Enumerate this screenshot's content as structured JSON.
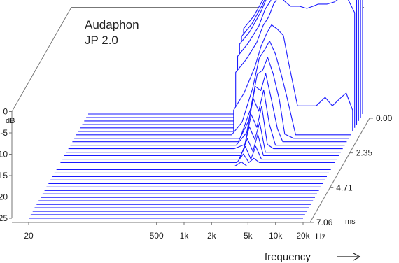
{
  "chart_data": {
    "type": "waterfall",
    "title": "Audaphon",
    "subtitle": "JP 2.0",
    "xlabel": "frequency",
    "x_unit": "Hz",
    "x_scale": "log",
    "xlim": [
      20,
      20000
    ],
    "x_ticks": [
      "20",
      "500",
      "1k",
      "2k",
      "5k",
      "10k",
      "20k"
    ],
    "ylabel": "dB",
    "ylim": [
      -25,
      0
    ],
    "y_ticks": [
      "0",
      "-5",
      "-10",
      "-15",
      "-20",
      "-25"
    ],
    "z_label": "ms",
    "zlim": [
      0,
      7.06
    ],
    "z_ticks": [
      "0.00",
      "2.35",
      "4.71",
      "7.06"
    ],
    "colors": {
      "series": "#1a1aff",
      "axes": "#777777",
      "text": "#1a1a1a"
    },
    "frequency_points": [
      1000,
      1300,
      1700,
      2000,
      2300,
      2600,
      3000,
      3500,
      4000,
      5000,
      6000,
      7000,
      8000,
      10000,
      12000,
      15000,
      17000,
      20000
    ],
    "series": [
      {
        "delay_ms": 0.0,
        "values": [
          -5,
          -2,
          2.5,
          6,
          8,
          11.5,
          14,
          12.5,
          13,
          12.5,
          12.5,
          13,
          13.5,
          13.5,
          14,
          15.5,
          15,
          12
        ]
      },
      {
        "delay_ms": 0.24,
        "values": [
          -6,
          -3,
          1.5,
          5,
          7,
          10.5,
          13,
          11.5,
          12,
          11.5,
          11.5,
          12,
          12.5,
          12.5,
          13,
          14.5,
          14,
          11
        ]
      },
      {
        "delay_ms": 0.47,
        "values": [
          -7,
          -4,
          0.5,
          4,
          6,
          9.5,
          12,
          10.5,
          11,
          10.5,
          10.5,
          11,
          11.5,
          11.5,
          12,
          13.5,
          13,
          10
        ]
      },
      {
        "delay_ms": 0.71,
        "values": [
          -9,
          -6,
          -2,
          2,
          4,
          7.5,
          10,
          8.5,
          9,
          8.5,
          8.5,
          9,
          9.5,
          9.5,
          10,
          11.5,
          11,
          8
        ]
      },
      {
        "delay_ms": 0.94,
        "values": [
          -12,
          -9,
          -5,
          -1,
          1,
          4,
          6,
          4.5,
          3.5,
          3.5,
          3,
          3.5,
          4,
          4,
          4.5,
          6,
          5,
          2
        ]
      },
      {
        "delay_ms": 1.18,
        "values": [
          -20,
          -16,
          -10,
          -5,
          -2,
          0,
          -1,
          -2.5,
          -9,
          -19,
          -19,
          -19,
          -19,
          -17,
          -19,
          -17,
          -16,
          -20
        ]
      },
      {
        "delay_ms": 1.41,
        "values": [
          -25,
          -22,
          -14,
          -7,
          -5,
          -3,
          -6,
          -11,
          -16,
          -25,
          -25,
          -25,
          -25,
          -25,
          -25,
          -25,
          -25,
          -25
        ]
      },
      {
        "delay_ms": 1.65,
        "values": [
          -25,
          -25,
          -18,
          -10,
          -9,
          -6,
          -10,
          -16,
          -24,
          -25,
          -25,
          -25,
          -25,
          -25,
          -25,
          -25,
          -25,
          -25
        ]
      },
      {
        "delay_ms": 1.88,
        "values": [
          -25,
          -25,
          -20,
          -12,
          -13,
          -9,
          -15,
          -22,
          -25,
          -25,
          -25,
          -25,
          -25,
          -25,
          -25,
          -25,
          -25,
          -25
        ]
      },
      {
        "delay_ms": 2.12,
        "values": [
          -25,
          -25,
          -22,
          -14,
          -17,
          -12,
          -20,
          -25,
          -25,
          -25,
          -25,
          -25,
          -25,
          -25,
          -25,
          -25,
          -25,
          -25
        ]
      },
      {
        "delay_ms": 2.35,
        "values": [
          -25,
          -25,
          -24,
          -17,
          -20,
          -15,
          -24,
          -25,
          -25,
          -25,
          -25,
          -25,
          -25,
          -25,
          -25,
          -25,
          -25,
          -25
        ]
      },
      {
        "delay_ms": 2.59,
        "values": [
          -25,
          -25,
          -25,
          -19,
          -22,
          -18,
          -25,
          -25,
          -25,
          -25,
          -25,
          -25,
          -25,
          -25,
          -25,
          -25,
          -25,
          -25
        ]
      },
      {
        "delay_ms": 2.82,
        "values": [
          -25,
          -25,
          -25,
          -21,
          -24,
          -20,
          -25,
          -25,
          -25,
          -25,
          -25,
          -25,
          -25,
          -25,
          -25,
          -25,
          -25,
          -25
        ]
      },
      {
        "delay_ms": 3.06,
        "values": [
          -25,
          -25,
          -25,
          -22,
          -25,
          -22,
          -25,
          -25,
          -25,
          -25,
          -25,
          -25,
          -25,
          -25,
          -25,
          -25,
          -25,
          -25
        ]
      },
      {
        "delay_ms": 3.29,
        "values": [
          -25,
          -25,
          -25,
          -23,
          -25,
          -24,
          -25,
          -25,
          -25,
          -25,
          -25,
          -25,
          -25,
          -25,
          -25,
          -25,
          -25,
          -25
        ]
      },
      {
        "delay_ms": 3.53,
        "values": [
          -25,
          -25,
          -25,
          -24,
          -25,
          -25,
          -25,
          -25,
          -25,
          -25,
          -25,
          -25,
          -25,
          -25,
          -25,
          -25,
          -25,
          -25
        ]
      },
      {
        "delay_ms": 3.76,
        "values": [
          -25,
          -25,
          -25,
          -25,
          -25,
          -25,
          -25,
          -25,
          -25,
          -25,
          -25,
          -25,
          -25,
          -25,
          -25,
          -25,
          -25,
          -25
        ]
      },
      {
        "delay_ms": 4.0,
        "values": [
          -25,
          -25,
          -25,
          -25,
          -25,
          -25,
          -25,
          -25,
          -25,
          -25,
          -25,
          -25,
          -25,
          -25,
          -25,
          -25,
          -25,
          -25
        ]
      },
      {
        "delay_ms": 4.24,
        "values": [
          -25,
          -25,
          -25,
          -25,
          -25,
          -25,
          -25,
          -25,
          -25,
          -25,
          -25,
          -25,
          -25,
          -25,
          -25,
          -25,
          -25,
          -25
        ]
      },
      {
        "delay_ms": 4.47,
        "values": [
          -25,
          -25,
          -25,
          -25,
          -25,
          -25,
          -25,
          -25,
          -25,
          -25,
          -25,
          -25,
          -25,
          -25,
          -25,
          -25,
          -25,
          -25
        ]
      },
      {
        "delay_ms": 4.71,
        "values": [
          -25,
          -25,
          -25,
          -25,
          -25,
          -25,
          -25,
          -25,
          -25,
          -25,
          -25,
          -25,
          -25,
          -25,
          -25,
          -25,
          -25,
          -25
        ]
      },
      {
        "delay_ms": 4.94,
        "values": [
          -25,
          -25,
          -25,
          -25,
          -25,
          -25,
          -25,
          -25,
          -25,
          -25,
          -25,
          -25,
          -25,
          -25,
          -25,
          -25,
          -25,
          -25
        ]
      },
      {
        "delay_ms": 5.18,
        "values": [
          -25,
          -25,
          -25,
          -25,
          -25,
          -25,
          -25,
          -25,
          -25,
          -25,
          -25,
          -25,
          -25,
          -25,
          -25,
          -25,
          -25,
          -25
        ]
      },
      {
        "delay_ms": 5.41,
        "values": [
          -25,
          -25,
          -25,
          -25,
          -25,
          -25,
          -25,
          -25,
          -25,
          -25,
          -25,
          -25,
          -25,
          -25,
          -25,
          -25,
          -25,
          -25
        ]
      },
      {
        "delay_ms": 5.65,
        "values": [
          -25,
          -25,
          -25,
          -25,
          -25,
          -25,
          -25,
          -25,
          -25,
          -25,
          -25,
          -25,
          -25,
          -25,
          -25,
          -25,
          -25,
          -25
        ]
      },
      {
        "delay_ms": 5.88,
        "values": [
          -25,
          -25,
          -25,
          -25,
          -25,
          -25,
          -25,
          -25,
          -25,
          -25,
          -25,
          -25,
          -25,
          -25,
          -25,
          -25,
          -25,
          -25
        ]
      },
      {
        "delay_ms": 6.12,
        "values": [
          -25,
          -25,
          -25,
          -25,
          -25,
          -25,
          -25,
          -25,
          -25,
          -25,
          -25,
          -25,
          -25,
          -25,
          -25,
          -25,
          -25,
          -25
        ]
      },
      {
        "delay_ms": 6.35,
        "values": [
          -25,
          -25,
          -25,
          -25,
          -25,
          -25,
          -25,
          -25,
          -25,
          -25,
          -25,
          -25,
          -25,
          -25,
          -25,
          -25,
          -25,
          -25
        ]
      },
      {
        "delay_ms": 6.59,
        "values": [
          -25,
          -25,
          -25,
          -25,
          -25,
          -25,
          -25,
          -25,
          -25,
          -25,
          -25,
          -25,
          -25,
          -25,
          -25,
          -25,
          -25,
          -25
        ]
      },
      {
        "delay_ms": 6.82,
        "values": [
          -25,
          -25,
          -25,
          -25,
          -25,
          -25,
          -25,
          -25,
          -25,
          -25,
          -25,
          -25,
          -25,
          -25,
          -25,
          -25,
          -25,
          -25
        ]
      },
      {
        "delay_ms": 7.06,
        "values": [
          -25,
          -25,
          -25,
          -25,
          -25,
          -25,
          -25,
          -25,
          -25,
          -25,
          -25,
          -25,
          -25,
          -25,
          -25,
          -25,
          -25,
          -25
        ]
      }
    ],
    "grid": false,
    "legend": "none"
  }
}
